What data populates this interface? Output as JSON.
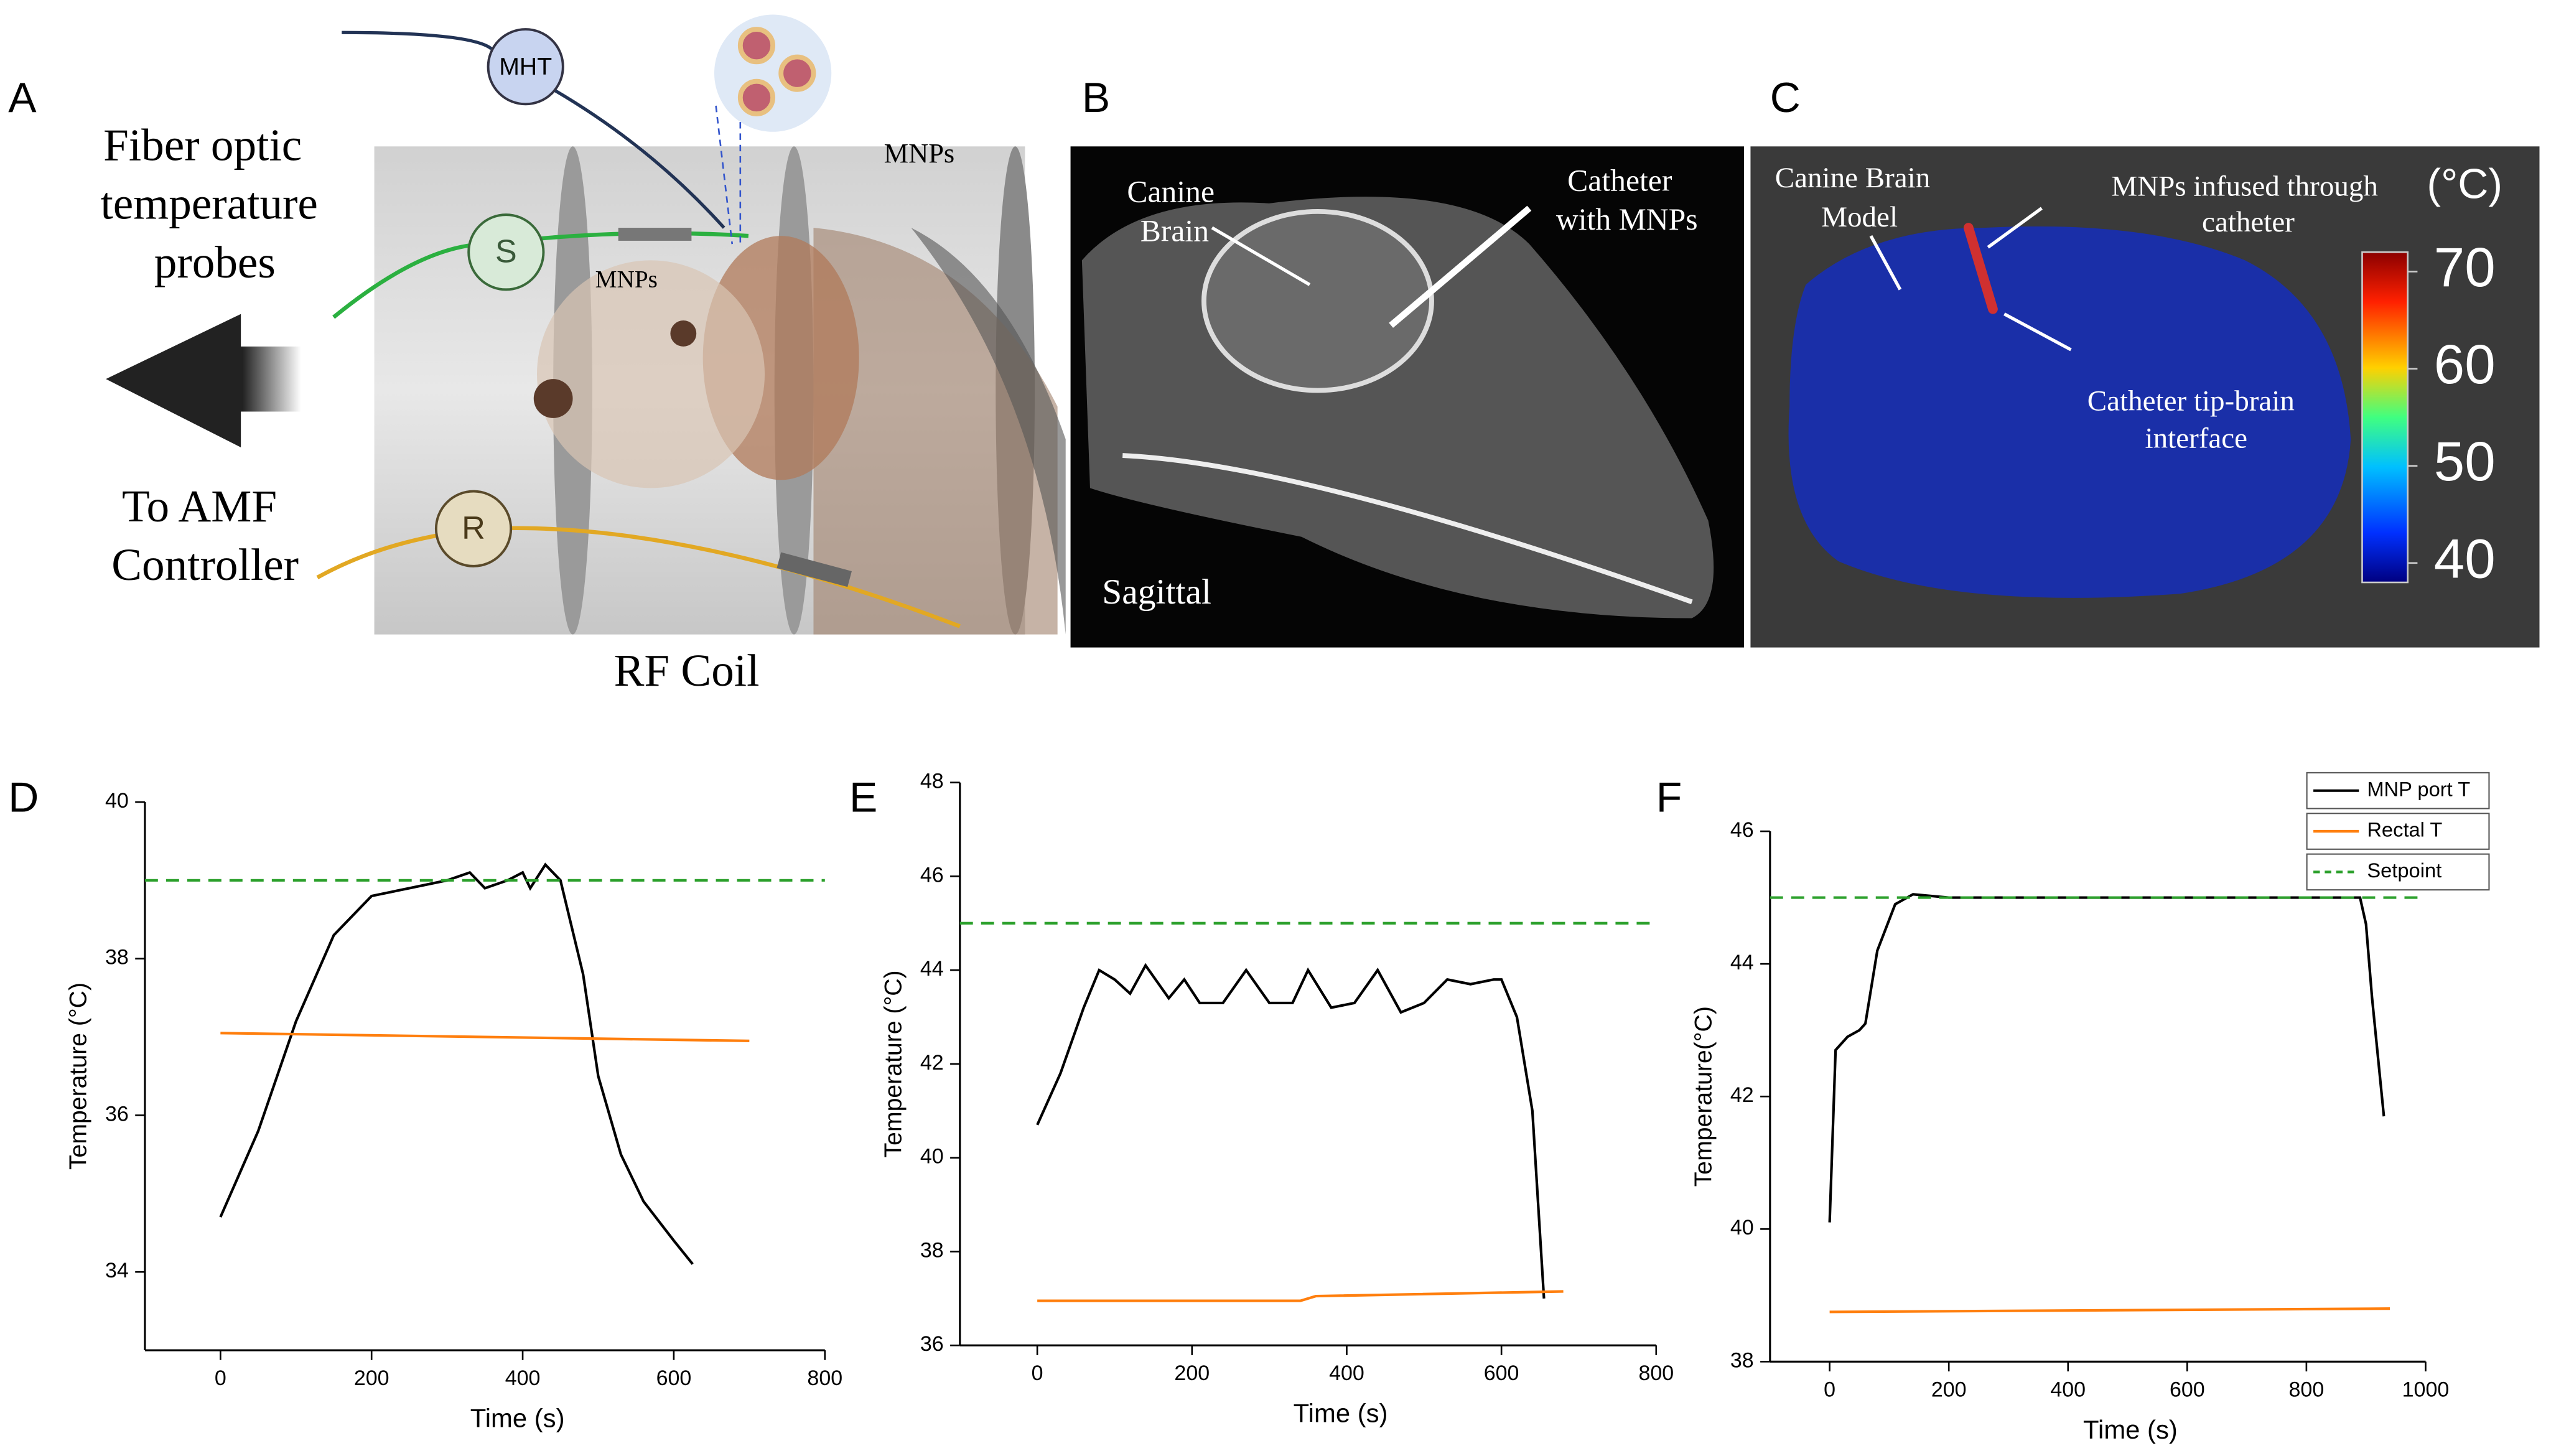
{
  "figure": {
    "a": {
      "label": "A",
      "mht": "MHT",
      "probes": [
        "Fiber optic",
        "temperature",
        "probes"
      ],
      "s": "S",
      "mnps_coil": "MNPs",
      "mnps_head": "MNPs",
      "controller": [
        "To AMF",
        "Controller"
      ],
      "r": "R",
      "coil": "RF Coil"
    },
    "b": {
      "label": "B",
      "brain": [
        "Canine",
        "Brain"
      ],
      "catheter": [
        "Catheter",
        "with MNPs"
      ],
      "view": "Sagittal"
    },
    "c": {
      "label": "C",
      "model": [
        "Canine Brain",
        "Model"
      ],
      "infused": [
        "MNPs infused through",
        "catheter"
      ],
      "tip": [
        "Catheter tip-brain",
        "interface"
      ],
      "colorbar": {
        "unit": "(°C)",
        "lim": [
          38,
          72
        ],
        "ticks": [
          40,
          50,
          60,
          70
        ]
      }
    }
  },
  "chart_data": [
    {
      "type": "line",
      "panel": "D",
      "xlabel": "Time (s)",
      "ylabel": "Temperature (°C)",
      "xlim": [
        -100,
        800
      ],
      "xticks": [
        0,
        200,
        400,
        600,
        800
      ],
      "ylim": [
        33,
        40
      ],
      "yticks": [
        34,
        36,
        38,
        40
      ],
      "series": [
        {
          "color": "#000000",
          "x": [
            0,
            50,
            100,
            150,
            200,
            250,
            300,
            330,
            350,
            380,
            400,
            410,
            430,
            450,
            480,
            500,
            530,
            560,
            600,
            625
          ],
          "values": [
            34.7,
            35.8,
            37.2,
            38.3,
            38.8,
            38.9,
            39.0,
            39.1,
            38.9,
            39.0,
            39.1,
            38.9,
            39.2,
            39.0,
            37.8,
            36.5,
            35.5,
            34.9,
            34.4,
            34.1
          ]
        },
        {
          "color": "#ff7f0e",
          "x": [
            0,
            700
          ],
          "values": [
            37.05,
            36.95
          ]
        },
        {
          "color": "#2ca02c",
          "dash": true,
          "x": [
            -100,
            800
          ],
          "values": [
            39,
            39
          ]
        }
      ]
    },
    {
      "type": "line",
      "panel": "E",
      "xlabel": "Time (s)",
      "ylabel": "Temperature (°C)",
      "xlim": [
        -100,
        800
      ],
      "xticks": [
        0,
        200,
        400,
        600,
        800
      ],
      "ylim": [
        36,
        48
      ],
      "yticks": [
        36,
        38,
        40,
        42,
        44,
        46,
        48
      ],
      "series": [
        {
          "color": "#000000",
          "x": [
            0,
            30,
            60,
            80,
            100,
            120,
            140,
            170,
            190,
            210,
            240,
            270,
            300,
            330,
            350,
            380,
            410,
            440,
            470,
            500,
            530,
            560,
            590,
            600,
            620,
            640,
            655
          ],
          "values": [
            40.7,
            41.8,
            43.2,
            44.0,
            43.8,
            43.5,
            44.1,
            43.4,
            43.8,
            43.3,
            43.3,
            44.0,
            43.3,
            43.3,
            44.0,
            43.2,
            43.3,
            44.0,
            43.1,
            43.3,
            43.8,
            43.7,
            43.8,
            43.8,
            43.0,
            41.0,
            37.0
          ]
        },
        {
          "color": "#ff7f0e",
          "x": [
            0,
            340,
            360,
            680
          ],
          "values": [
            36.95,
            36.95,
            37.05,
            37.15
          ]
        },
        {
          "color": "#2ca02c",
          "dash": true,
          "x": [
            -100,
            800
          ],
          "values": [
            45,
            45
          ]
        }
      ]
    },
    {
      "type": "line",
      "panel": "F",
      "xlabel": "Time (s)",
      "ylabel": "Temperature(°C)",
      "xlim": [
        -100,
        1000
      ],
      "xticks": [
        0,
        200,
        400,
        600,
        800,
        1000
      ],
      "ylim": [
        38,
        46
      ],
      "yticks": [
        38,
        40,
        42,
        44,
        46
      ],
      "legend": "upper right",
      "series": [
        {
          "name": "MNP port T",
          "color": "#000000",
          "x": [
            0,
            10,
            30,
            50,
            60,
            80,
            110,
            140,
            200,
            890,
            900,
            910,
            930
          ],
          "values": [
            40.1,
            42.7,
            42.9,
            43.0,
            43.1,
            44.2,
            44.9,
            45.05,
            45.0,
            45.0,
            44.6,
            43.5,
            41.7
          ]
        },
        {
          "name": "Rectal T",
          "color": "#ff7f0e",
          "x": [
            0,
            940
          ],
          "values": [
            38.75,
            38.8
          ]
        },
        {
          "name": "Setpoint",
          "color": "#2ca02c",
          "dash": true,
          "x": [
            -100,
            1000
          ],
          "values": [
            45,
            45
          ]
        }
      ]
    }
  ]
}
